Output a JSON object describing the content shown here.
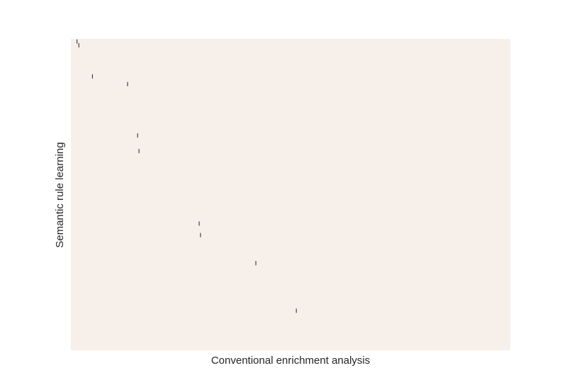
{
  "chart_data": {
    "type": "heatmap",
    "title": "",
    "xlabel": "Conventional enrichment analysis",
    "ylabel": "Semantic rule learning",
    "xlim": [
      0,
      1
    ],
    "ylim": [
      0,
      1
    ],
    "grid": false,
    "colors": {
      "background": "#f7efea",
      "mark": "#2b1a1f"
    },
    "marks": [
      {
        "x": 0.014,
        "y": 0.008
      },
      {
        "x": 0.018,
        "y": 0.02
      },
      {
        "x": 0.049,
        "y": 0.12
      },
      {
        "x": 0.129,
        "y": 0.145
      },
      {
        "x": 0.152,
        "y": 0.31
      },
      {
        "x": 0.155,
        "y": 0.36
      },
      {
        "x": 0.292,
        "y": 0.593
      },
      {
        "x": 0.295,
        "y": 0.63
      },
      {
        "x": 0.421,
        "y": 0.72
      },
      {
        "x": 0.513,
        "y": 0.873
      }
    ]
  }
}
